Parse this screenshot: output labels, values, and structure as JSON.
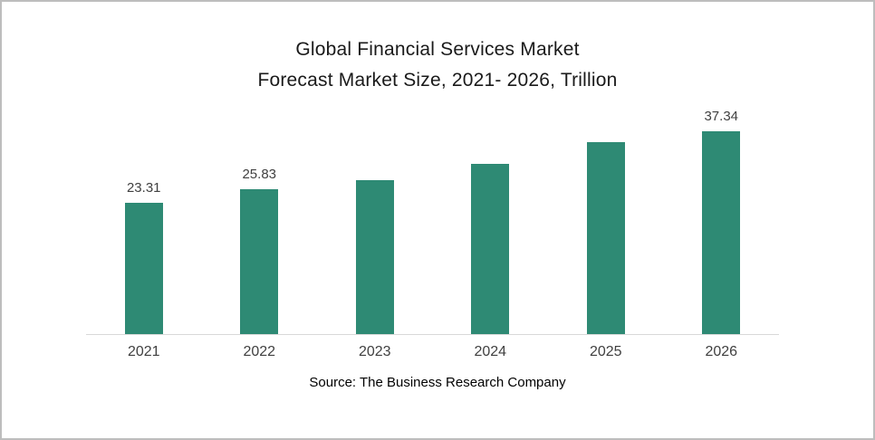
{
  "chart_data": {
    "type": "bar",
    "title": "Global Financial Services Market Forecast Market Size, 2021- 2026, Trillion",
    "title_lines": [
      "Global Financial Services Market",
      "Forecast Market Size, 2021- 2026, Trillion"
    ],
    "categories": [
      "2021",
      "2022",
      "2023",
      "2024",
      "2025",
      "2026"
    ],
    "values": [
      23.31,
      25.83,
      27.3,
      30.2,
      34.1,
      37.34
    ],
    "data_labels": [
      "23.31",
      "25.83",
      "",
      "",
      "",
      "37.34"
    ],
    "ylim": [
      0,
      40
    ],
    "bar_color": "#2E8A74",
    "grid": false,
    "legend": false,
    "xlabel": "",
    "ylabel": "",
    "source": "Source: The Business Research Company"
  }
}
